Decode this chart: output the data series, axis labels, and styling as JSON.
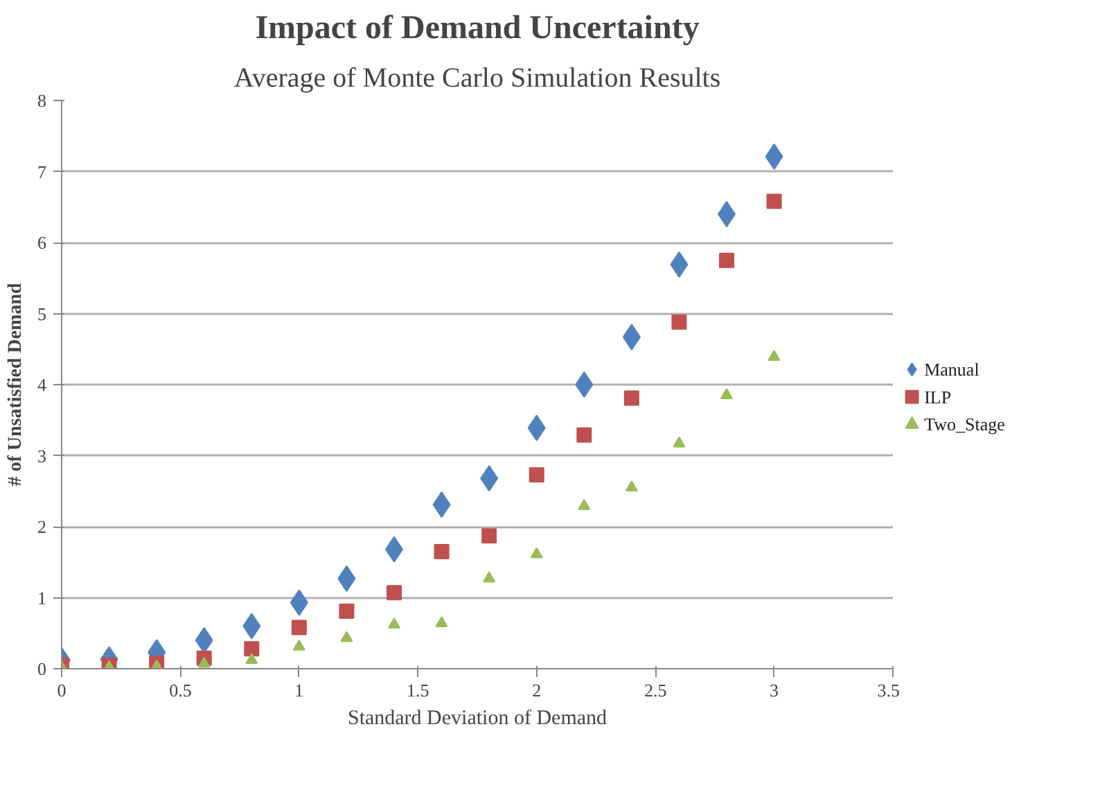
{
  "chart_data": {
    "type": "scatter",
    "title": "Impact of Demand Uncertainty",
    "subtitle": "Average of Monte Carlo Simulation Results",
    "xlabel": "Standard Deviation of Demand",
    "ylabel": "# of Unsatisfied Demand",
    "x": [
      0,
      0.2,
      0.4,
      0.6,
      0.8,
      1.0,
      1.2,
      1.4,
      1.6,
      1.8,
      2.0,
      2.2,
      2.4,
      2.6,
      2.8,
      3.0
    ],
    "series": [
      {
        "name": "Manual",
        "color": "#4f81bd",
        "marker": "diamond",
        "values": [
          0.12,
          0.13,
          0.23,
          0.4,
          0.6,
          0.93,
          1.27,
          1.68,
          2.31,
          2.68,
          3.39,
          4.0,
          4.67,
          5.69,
          6.4,
          7.21
        ]
      },
      {
        "name": "ILP",
        "color": "#c0504d",
        "marker": "square",
        "values": [
          0.05,
          0.05,
          0.08,
          0.15,
          0.28,
          0.58,
          0.81,
          1.07,
          1.65,
          1.87,
          2.73,
          3.29,
          3.81,
          4.88,
          5.75,
          6.58
        ]
      },
      {
        "name": "Two_Stage",
        "color": "#9bbb59",
        "marker": "triangle",
        "values": [
          0.02,
          0.02,
          0.03,
          0.07,
          0.12,
          0.31,
          0.43,
          0.62,
          0.64,
          1.27,
          1.61,
          2.29,
          2.55,
          3.17,
          3.85,
          4.39
        ]
      }
    ],
    "xlim": [
      0,
      3.5
    ],
    "xticks": [
      0,
      0.5,
      1,
      1.5,
      2,
      2.5,
      3,
      3.5
    ],
    "ylim": [
      0,
      8
    ],
    "yticks": [
      0,
      1,
      2,
      3,
      4,
      5,
      6,
      7,
      8
    ],
    "grid": "y",
    "legend": "right"
  }
}
